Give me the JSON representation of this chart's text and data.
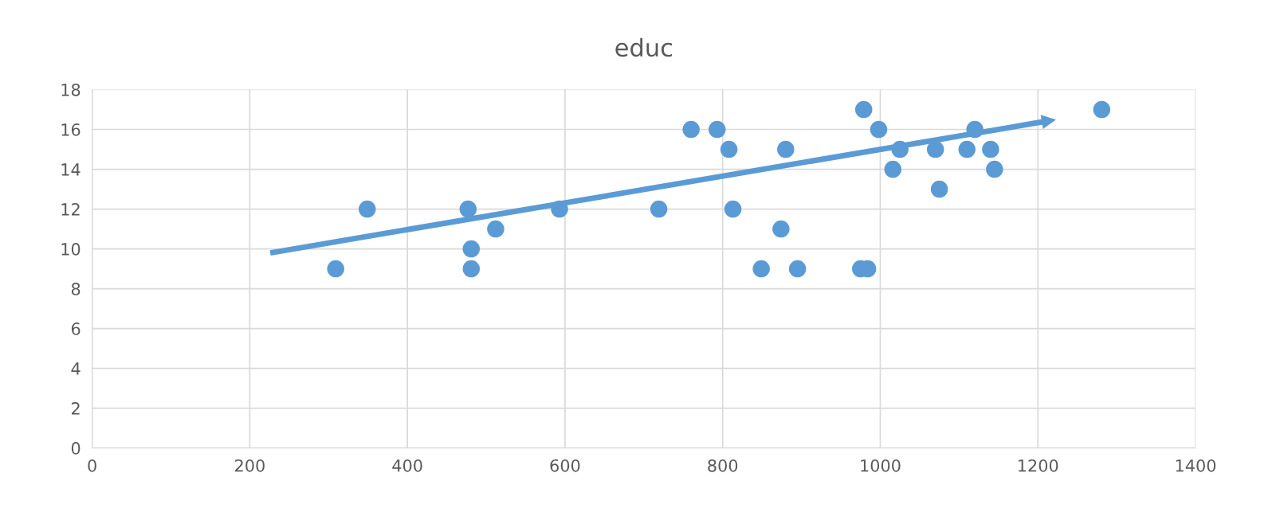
{
  "chart_data": {
    "type": "scatter",
    "title": "educ",
    "xlim": [
      0,
      1400
    ],
    "xticks": [
      0,
      200,
      400,
      600,
      800,
      1000,
      1200,
      1400
    ],
    "ylim": [
      0,
      18
    ],
    "yticks": [
      0,
      2,
      4,
      6,
      8,
      10,
      12,
      14,
      16,
      18
    ],
    "grid": true,
    "series": [
      {
        "marker": "circle",
        "color": "#5b9bd5",
        "x": [
          309,
          349,
          477,
          481,
          481,
          512,
          593,
          719,
          760,
          793,
          808,
          813,
          849,
          880,
          874,
          895,
          979,
          975,
          984,
          998,
          1016,
          1025,
          1070,
          1075,
          1110,
          1120,
          1140,
          1145,
          1281
        ],
        "values": [
          9,
          12,
          12,
          10,
          9,
          11,
          12,
          12,
          16,
          16,
          15,
          12,
          9,
          15,
          11,
          9,
          17,
          9,
          9,
          16,
          14,
          15,
          15,
          13,
          15,
          16,
          15,
          14,
          17
        ]
      },
      {
        "type": "line",
        "color": "#5b9bd5",
        "x": [
          226,
          1209
        ],
        "values": [
          9.8,
          16.4
        ]
      }
    ]
  }
}
